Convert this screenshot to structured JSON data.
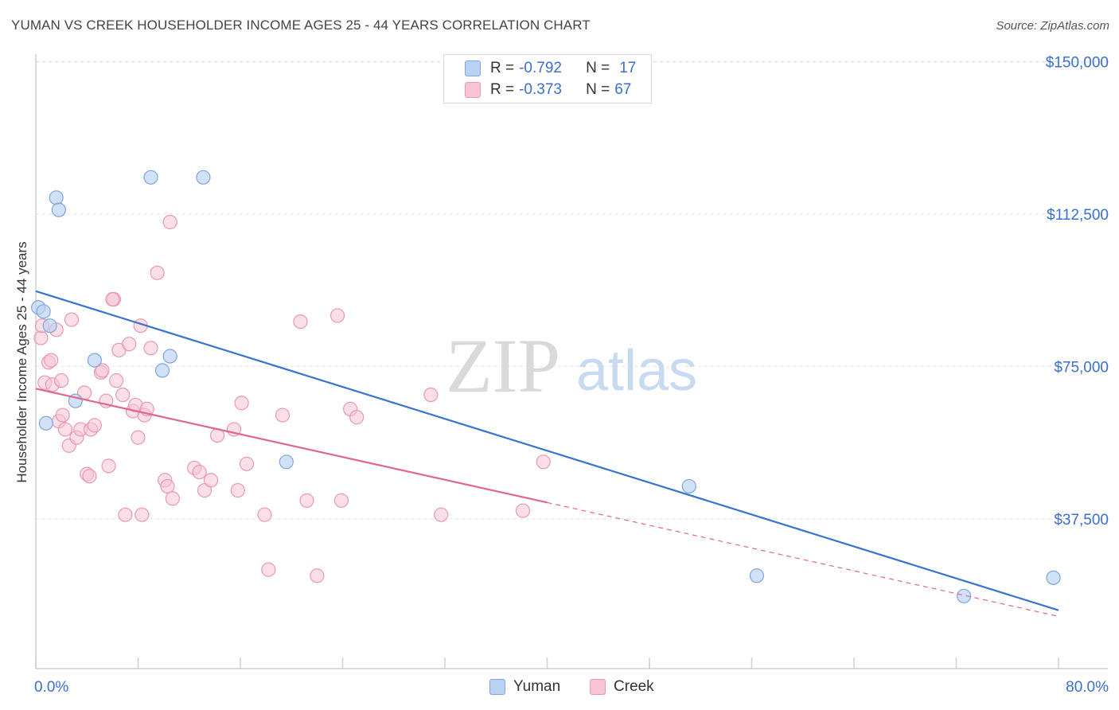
{
  "title": "YUMAN VS CREEK HOUSEHOLDER INCOME AGES 25 - 44 YEARS CORRELATION CHART",
  "source": "Source: ZipAtlas.com",
  "watermark": {
    "zip": "ZIP",
    "atlas": "atlas"
  },
  "stats_legend": [
    {
      "r_label": "R =",
      "r_value": "-0.792",
      "n_label": "N =",
      "n_value": "17"
    },
    {
      "r_label": "R =",
      "r_value": "-0.373",
      "n_label": "N =",
      "n_value": "67"
    }
  ],
  "bottom_legend": [
    "Yuman",
    "Creek"
  ],
  "colors": {
    "yuman_fill": "#b9d1f2",
    "yuman_stroke": "#7ea5dd",
    "yuman_line": "#3773d1",
    "creek_fill": "#f8c4d4",
    "creek_stroke": "#e898b2",
    "creek_line": "#e06690",
    "value_text": "#3a6fd0",
    "grid": "#e3e3e3"
  },
  "chart_data": {
    "type": "scatter",
    "title": "YUMAN VS CREEK HOUSEHOLDER INCOME AGES 25 - 44 YEARS CORRELATION CHART",
    "xlabel": "",
    "ylabel": "Householder Income Ages 25 - 44 years",
    "xlim": [
      0,
      80
    ],
    "ylim": [
      0,
      160000
    ],
    "x_tick_labels": [
      "0.0%",
      "80.0%"
    ],
    "y_ticks": [
      37500,
      75000,
      112500,
      150000
    ],
    "y_tick_labels": [
      "$37,500",
      "$75,000",
      "$112,500",
      "$150,000"
    ],
    "grid": true,
    "series": [
      {
        "name": "Yuman",
        "points": [
          [
            0.2,
            89500
          ],
          [
            0.6,
            88500
          ],
          [
            1.1,
            85000
          ],
          [
            1.6,
            116500
          ],
          [
            1.8,
            113500
          ],
          [
            3.1,
            66500
          ],
          [
            4.6,
            76500
          ],
          [
            9.0,
            121500
          ],
          [
            9.9,
            74000
          ],
          [
            10.5,
            77500
          ],
          [
            13.1,
            121500
          ],
          [
            19.6,
            51500
          ],
          [
            51.1,
            45500
          ],
          [
            56.4,
            23500
          ],
          [
            72.6,
            18500
          ],
          [
            79.6,
            23000
          ],
          [
            0.8,
            61000
          ]
        ],
        "trend": {
          "x0": 0,
          "y0": 93500,
          "x1": 80,
          "y1": 15000
        }
      },
      {
        "name": "Creek",
        "points": [
          [
            0.4,
            82000
          ],
          [
            0.5,
            85000
          ],
          [
            0.7,
            71000
          ],
          [
            1.0,
            76000
          ],
          [
            1.2,
            76500
          ],
          [
            1.3,
            70500
          ],
          [
            1.6,
            84000
          ],
          [
            1.8,
            61500
          ],
          [
            2.0,
            71500
          ],
          [
            2.1,
            63000
          ],
          [
            2.3,
            59500
          ],
          [
            2.6,
            55500
          ],
          [
            2.8,
            86500
          ],
          [
            3.2,
            57500
          ],
          [
            3.5,
            59500
          ],
          [
            3.8,
            68500
          ],
          [
            4.0,
            48500
          ],
          [
            4.2,
            48000
          ],
          [
            4.3,
            59500
          ],
          [
            4.6,
            60500
          ],
          [
            5.1,
            73500
          ],
          [
            5.2,
            74000
          ],
          [
            5.5,
            66500
          ],
          [
            5.7,
            50500
          ],
          [
            6.1,
            91500
          ],
          [
            6.3,
            71500
          ],
          [
            6.5,
            79000
          ],
          [
            6.8,
            68000
          ],
          [
            7.0,
            38500
          ],
          [
            7.3,
            80500
          ],
          [
            7.6,
            64000
          ],
          [
            7.8,
            65500
          ],
          [
            8.0,
            57500
          ],
          [
            8.2,
            85000
          ],
          [
            8.3,
            38500
          ],
          [
            8.5,
            63000
          ],
          [
            8.7,
            64500
          ],
          [
            9.0,
            79500
          ],
          [
            9.5,
            98000
          ],
          [
            10.1,
            47000
          ],
          [
            10.3,
            45500
          ],
          [
            10.5,
            110500
          ],
          [
            10.7,
            42500
          ],
          [
            12.4,
            50000
          ],
          [
            12.8,
            49000
          ],
          [
            13.2,
            44500
          ],
          [
            13.7,
            47000
          ],
          [
            14.2,
            58000
          ],
          [
            15.5,
            59500
          ],
          [
            15.8,
            44500
          ],
          [
            16.1,
            66000
          ],
          [
            16.5,
            51000
          ],
          [
            17.9,
            38500
          ],
          [
            18.2,
            25000
          ],
          [
            19.3,
            63000
          ],
          [
            20.7,
            86000
          ],
          [
            21.2,
            42000
          ],
          [
            22.0,
            23500
          ],
          [
            23.6,
            87500
          ],
          [
            23.9,
            42000
          ],
          [
            24.6,
            64500
          ],
          [
            25.1,
            62500
          ],
          [
            30.9,
            68000
          ],
          [
            31.7,
            38500
          ],
          [
            38.1,
            39500
          ],
          [
            39.7,
            51500
          ],
          [
            6.0,
            91500
          ]
        ],
        "trend": {
          "x0": 0,
          "y0": 69500,
          "x1": 40,
          "y1": 41500
        },
        "trend_extension": {
          "x0": 40,
          "y0": 41500,
          "x1": 80,
          "y1": 13500
        }
      }
    ]
  }
}
